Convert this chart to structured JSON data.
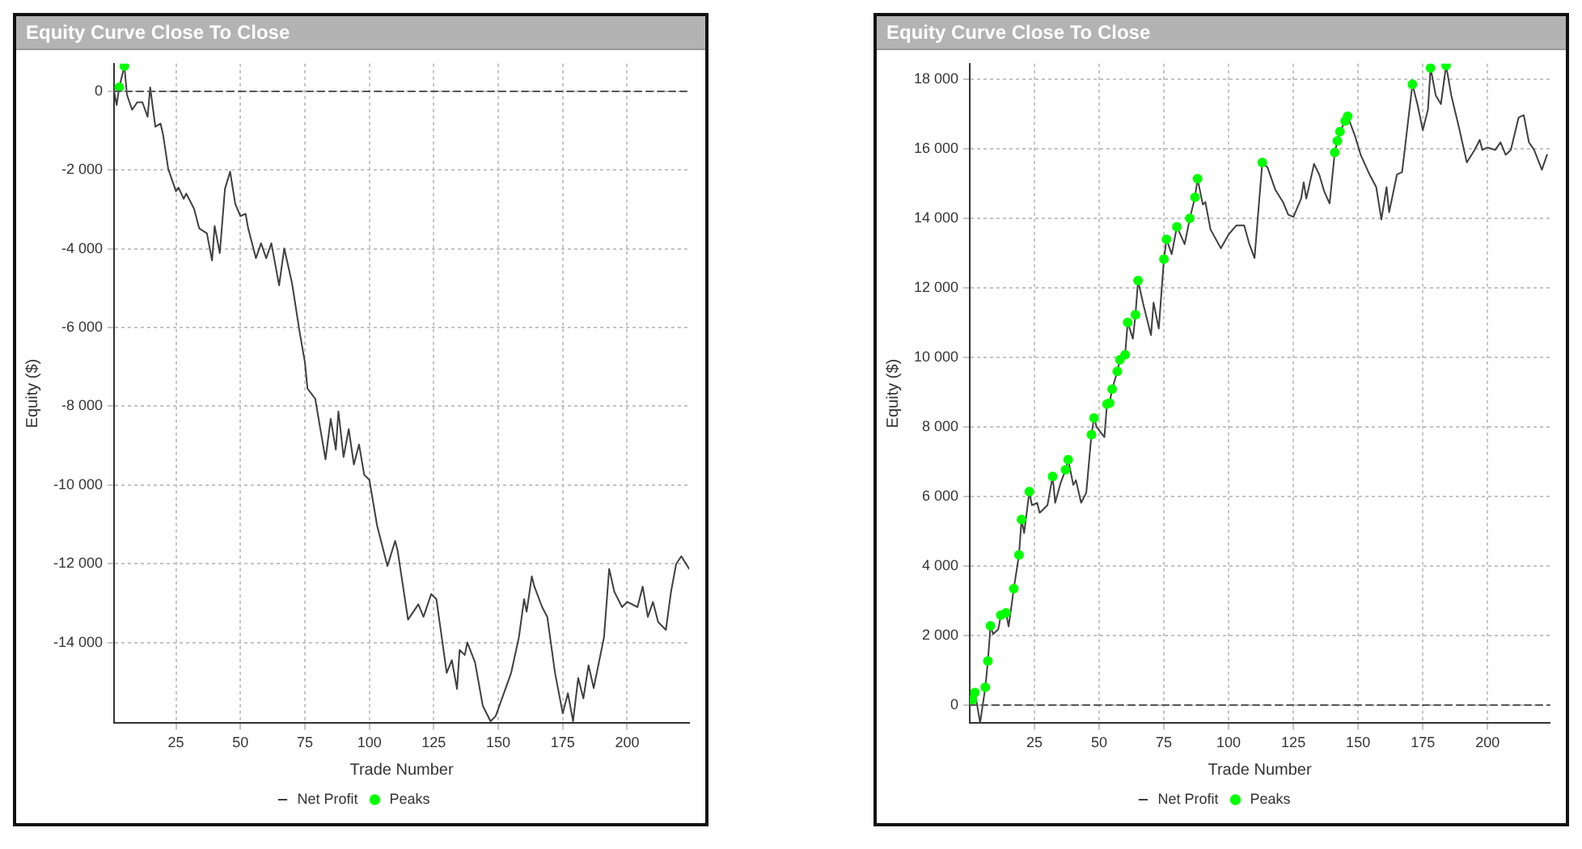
{
  "chart_data": [
    {
      "type": "line",
      "title": "Equity Curve Close To Close",
      "xlabel": "Trade Number",
      "ylabel": "Equity ($)",
      "xlim": [
        1,
        224
      ],
      "ylim": [
        -16050,
        700
      ],
      "xticks": [
        25,
        50,
        75,
        100,
        125,
        150,
        175,
        200
      ],
      "yticks": [
        {
          "value": 0,
          "label": "0"
        },
        {
          "value": -2000,
          "label": "-2 000"
        },
        {
          "value": -4000,
          "label": "-4 000"
        },
        {
          "value": -6000,
          "label": "-6 000"
        },
        {
          "value": -8000,
          "label": "-8 000"
        },
        {
          "value": -10000,
          "label": "-10 000"
        },
        {
          "value": -12000,
          "label": "-12 000"
        },
        {
          "value": -14000,
          "label": "-14 000"
        }
      ],
      "grid": true,
      "legend": "bottom",
      "ref_lines": [
        {
          "axis": "y",
          "value": 0,
          "color": "#555555",
          "line_style": "dashed"
        }
      ],
      "series": [
        {
          "name": "Net Profit",
          "type": "line",
          "color": "#404040",
          "marker": "none",
          "x": [
            1,
            2,
            3,
            5,
            6,
            8,
            10,
            12,
            14,
            15,
            17,
            19,
            20,
            22,
            25,
            26,
            28,
            29,
            32,
            34,
            37,
            39,
            40,
            42,
            44,
            46,
            48,
            50,
            52,
            53,
            56,
            58,
            60,
            62,
            65,
            67,
            70,
            73,
            75,
            76,
            79,
            83,
            85,
            87,
            88,
            90,
            92,
            94,
            96,
            98,
            100,
            103,
            107,
            110,
            111,
            115,
            119,
            121,
            124,
            126,
            130,
            132,
            134,
            135,
            137,
            138,
            141,
            144,
            147,
            149,
            155,
            158,
            160,
            161,
            163,
            164,
            167,
            169,
            172,
            175,
            177,
            179,
            181,
            183,
            185,
            187,
            191,
            193,
            195,
            198,
            200,
            204,
            206,
            208,
            210,
            212,
            215,
            217,
            219,
            221,
            224
          ],
          "values": [
            0,
            -350,
            100,
            640,
            -90,
            -470,
            -280,
            -280,
            -650,
            100,
            -900,
            -820,
            -1100,
            -1970,
            -2540,
            -2450,
            -2730,
            -2600,
            -2980,
            -3480,
            -3610,
            -4300,
            -3420,
            -4110,
            -2480,
            -2040,
            -2860,
            -3170,
            -3110,
            -3480,
            -4240,
            -3860,
            -4240,
            -3860,
            -4930,
            -3990,
            -4870,
            -6130,
            -6880,
            -7550,
            -7810,
            -9350,
            -8320,
            -9100,
            -8130,
            -9290,
            -8580,
            -9480,
            -8970,
            -9740,
            -9870,
            -11030,
            -12060,
            -11420,
            -11680,
            -13420,
            -13030,
            -13350,
            -12770,
            -12900,
            -14770,
            -14450,
            -15180,
            -14190,
            -14320,
            -14000,
            -14510,
            -15610,
            -16000,
            -15870,
            -14770,
            -13870,
            -12900,
            -13220,
            -12320,
            -12580,
            -13100,
            -13350,
            -14770,
            -15800,
            -15290,
            -16000,
            -14900,
            -15420,
            -14580,
            -15160,
            -13870,
            -12130,
            -12710,
            -13100,
            -12970,
            -13100,
            -12580,
            -13350,
            -12970,
            -13480,
            -13680,
            -12710,
            -12000,
            -11810,
            -12130
          ]
        },
        {
          "name": "Peaks",
          "type": "scatter",
          "color": "#00ff00",
          "marker": "circle",
          "x": [
            3,
            5
          ],
          "values": [
            100,
            640
          ]
        }
      ]
    },
    {
      "type": "line",
      "title": "Equity Curve Close To Close",
      "xlabel": "Trade Number",
      "ylabel": "Equity ($)",
      "xlim": [
        0,
        224
      ],
      "ylim": [
        -520,
        18450
      ],
      "xticks": [
        25,
        50,
        75,
        100,
        125,
        150,
        175,
        200
      ],
      "yticks": [
        {
          "value": 0,
          "label": "0"
        },
        {
          "value": 2000,
          "label": "2 000"
        },
        {
          "value": 4000,
          "label": "4 000"
        },
        {
          "value": 6000,
          "label": "6 000"
        },
        {
          "value": 8000,
          "label": "8 000"
        },
        {
          "value": 10000,
          "label": "10 000"
        },
        {
          "value": 12000,
          "label": "12 000"
        },
        {
          "value": 14000,
          "label": "14 000"
        },
        {
          "value": 16000,
          "label": "16 000"
        },
        {
          "value": 18000,
          "label": "18 000"
        }
      ],
      "grid": true,
      "legend": "bottom",
      "ref_lines": [
        {
          "axis": "y",
          "value": 0,
          "color": "#555555",
          "line_style": "dashed"
        }
      ],
      "series": [
        {
          "name": "Net Profit",
          "type": "line",
          "color": "#404040",
          "marker": "none",
          "x": [
            1,
            2,
            3,
            4,
            6,
            7,
            8,
            9,
            11,
            12,
            14,
            15,
            17,
            19,
            20,
            21,
            23,
            24,
            26,
            27,
            30,
            32,
            33,
            35,
            37,
            38,
            40,
            41,
            43,
            45,
            47,
            48,
            49,
            52,
            53,
            54,
            55,
            57,
            58,
            60,
            61,
            63,
            64,
            65,
            67,
            70,
            71,
            73,
            75,
            76,
            78,
            80,
            83,
            85,
            87,
            88,
            90,
            91,
            93,
            97,
            100,
            103,
            106,
            108,
            110,
            113,
            115,
            118,
            121,
            123,
            125,
            128,
            129,
            130,
            133,
            135,
            137,
            139,
            141,
            142,
            143,
            145,
            146,
            149,
            151,
            154,
            157,
            159,
            161,
            162,
            165,
            167,
            171,
            173,
            175,
            177,
            178,
            180,
            182,
            184,
            186,
            189,
            192,
            195,
            197,
            198,
            200,
            203,
            205,
            207,
            209,
            212,
            214,
            216,
            218,
            221,
            223
          ],
          "values": [
            150,
            360,
            -70,
            -510,
            510,
            1270,
            2280,
            2040,
            2180,
            2590,
            2650,
            2260,
            3350,
            4320,
            5340,
            4950,
            6140,
            5750,
            5820,
            5530,
            5750,
            6580,
            5820,
            6370,
            6770,
            7060,
            6330,
            6470,
            5820,
            6110,
            7780,
            8260,
            8000,
            7710,
            8660,
            8690,
            9090,
            9600,
            9930,
            10080,
            11010,
            10540,
            11230,
            12210,
            11540,
            10640,
            11580,
            10830,
            12830,
            13400,
            12970,
            13760,
            13260,
            14000,
            14610,
            15140,
            14400,
            14470,
            13680,
            13140,
            13540,
            13800,
            13800,
            13260,
            12860,
            15610,
            15470,
            14830,
            14470,
            14110,
            14040,
            14570,
            15040,
            14570,
            15570,
            15260,
            14760,
            14430,
            15900,
            16230,
            16500,
            16800,
            16940,
            16330,
            15830,
            15330,
            14900,
            13970,
            14900,
            14180,
            15260,
            15330,
            17860,
            17260,
            16540,
            17140,
            18330,
            17540,
            17290,
            18400,
            17540,
            16610,
            15610,
            15970,
            16260,
            15970,
            16040,
            15970,
            16190,
            15830,
            15970,
            16900,
            16970,
            16190,
            15970,
            15400,
            15830
          ]
        },
        {
          "name": "Peaks",
          "type": "scatter",
          "color": "#00ff00",
          "marker": "circle",
          "x": [
            1,
            2,
            6,
            7,
            8,
            12,
            14,
            17,
            19,
            20,
            23,
            32,
            37,
            38,
            47,
            48,
            53,
            54,
            55,
            57,
            58,
            60,
            61,
            64,
            65,
            75,
            76,
            80,
            85,
            87,
            88,
            113,
            141,
            142,
            143,
            145,
            146,
            171,
            178,
            184
          ],
          "values": [
            150,
            360,
            510,
            1270,
            2280,
            2590,
            2650,
            3350,
            4320,
            5340,
            6140,
            6580,
            6770,
            7060,
            7780,
            8260,
            8660,
            8690,
            9090,
            9600,
            9930,
            10080,
            11010,
            11230,
            12210,
            12830,
            13400,
            13760,
            14000,
            14610,
            15140,
            15610,
            15900,
            16230,
            16500,
            16800,
            16940,
            17860,
            18330,
            18400
          ]
        }
      ]
    }
  ]
}
